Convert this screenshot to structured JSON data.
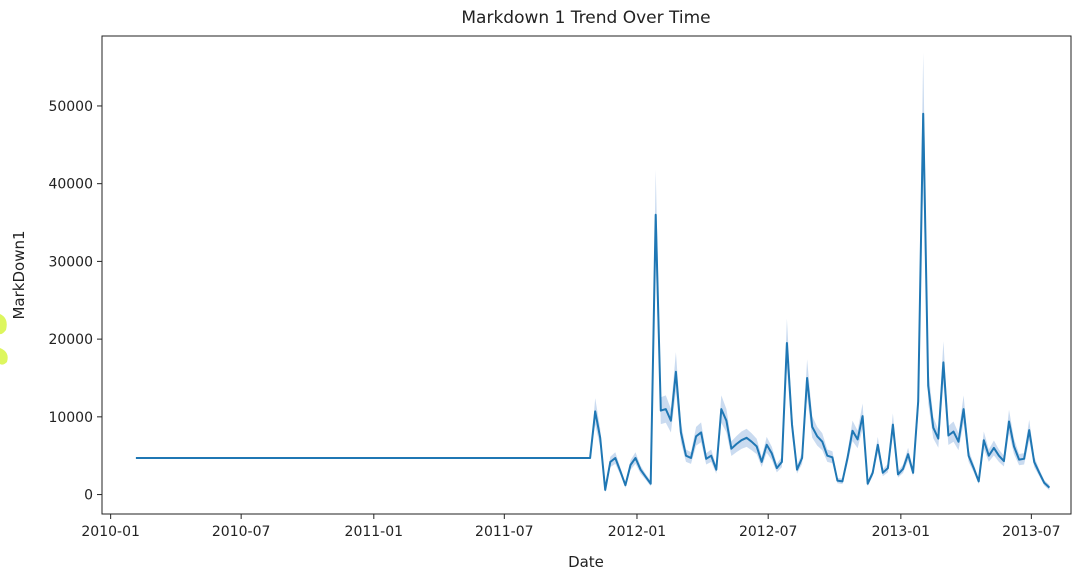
{
  "colors": {
    "line": "#1f77b4",
    "band": "#aec7e8",
    "axis": "#222222",
    "annotation": "#d7f542"
  },
  "chart_data": {
    "type": "line",
    "title": "Markdown 1 Trend Over Time",
    "xlabel": "Date",
    "ylabel": "MarkDown1",
    "x_ticks": [
      "2010-01",
      "2010-07",
      "2011-01",
      "2011-07",
      "2012-01",
      "2012-07",
      "2013-01",
      "2013-07"
    ],
    "y_ticks": [
      0,
      10000,
      20000,
      30000,
      40000,
      50000
    ],
    "xlim": [
      "2009-12-20",
      "2013-08-25"
    ],
    "ylim": [
      -2500,
      59000
    ],
    "grid": false,
    "confidence_band": true,
    "series": [
      {
        "points": [
          [
            "2010-02-05",
            4700
          ],
          [
            "2010-06-04",
            4700
          ],
          [
            "2010-10-01",
            4700
          ],
          [
            "2011-02-04",
            4700
          ],
          [
            "2011-06-03",
            4700
          ],
          [
            "2011-10-28",
            4700
          ],
          [
            "2011-11-04",
            10700
          ],
          [
            "2011-11-11",
            7300
          ],
          [
            "2011-11-18",
            600
          ],
          [
            "2011-11-25",
            4200
          ],
          [
            "2011-12-02",
            4700
          ],
          [
            "2011-12-09",
            3000
          ],
          [
            "2011-12-16",
            1200
          ],
          [
            "2011-12-23",
            3800
          ],
          [
            "2011-12-30",
            4700
          ],
          [
            "2012-01-06",
            3200
          ],
          [
            "2012-01-13",
            2300
          ],
          [
            "2012-01-20",
            1400
          ],
          [
            "2012-01-27",
            36000
          ],
          [
            "2012-02-03",
            10800
          ],
          [
            "2012-02-10",
            11000
          ],
          [
            "2012-02-17",
            9500
          ],
          [
            "2012-02-24",
            15800
          ],
          [
            "2012-03-02",
            8000
          ],
          [
            "2012-03-09",
            5000
          ],
          [
            "2012-03-16",
            4700
          ],
          [
            "2012-03-23",
            7500
          ],
          [
            "2012-03-30",
            8000
          ],
          [
            "2012-04-06",
            4600
          ],
          [
            "2012-04-13",
            5000
          ],
          [
            "2012-04-20",
            3200
          ],
          [
            "2012-04-27",
            11000
          ],
          [
            "2012-05-04",
            9500
          ],
          [
            "2012-05-11",
            5900
          ],
          [
            "2012-05-18",
            6500
          ],
          [
            "2012-05-25",
            7000
          ],
          [
            "2012-06-01",
            7300
          ],
          [
            "2012-06-08",
            6800
          ],
          [
            "2012-06-15",
            6200
          ],
          [
            "2012-06-22",
            4200
          ],
          [
            "2012-06-29",
            6400
          ],
          [
            "2012-07-06",
            5300
          ],
          [
            "2012-07-13",
            3400
          ],
          [
            "2012-07-20",
            4200
          ],
          [
            "2012-07-27",
            19500
          ],
          [
            "2012-08-03",
            9000
          ],
          [
            "2012-08-10",
            3200
          ],
          [
            "2012-08-17",
            4700
          ],
          [
            "2012-08-24",
            15000
          ],
          [
            "2012-08-31",
            8700
          ],
          [
            "2012-09-07",
            7500
          ],
          [
            "2012-09-14",
            6800
          ],
          [
            "2012-09-21",
            5000
          ],
          [
            "2012-09-28",
            4800
          ],
          [
            "2012-10-05",
            1800
          ],
          [
            "2012-10-12",
            1700
          ],
          [
            "2012-10-19",
            4700
          ],
          [
            "2012-10-26",
            8200
          ],
          [
            "2012-11-02",
            7100
          ],
          [
            "2012-11-09",
            10100
          ],
          [
            "2012-11-16",
            1400
          ],
          [
            "2012-11-23",
            2800
          ],
          [
            "2012-11-30",
            6400
          ],
          [
            "2012-12-07",
            2800
          ],
          [
            "2012-12-14",
            3400
          ],
          [
            "2012-12-21",
            9000
          ],
          [
            "2012-12-28",
            2600
          ],
          [
            "2013-01-04",
            3300
          ],
          [
            "2013-01-11",
            5200
          ],
          [
            "2013-01-18",
            2800
          ],
          [
            "2013-01-25",
            12000
          ],
          [
            "2013-02-01",
            49000
          ],
          [
            "2013-02-08",
            14000
          ],
          [
            "2013-02-15",
            8600
          ],
          [
            "2013-02-22",
            7200
          ],
          [
            "2013-03-01",
            17000
          ],
          [
            "2013-03-08",
            7600
          ],
          [
            "2013-03-15",
            8100
          ],
          [
            "2013-03-22",
            6800
          ],
          [
            "2013-03-29",
            11000
          ],
          [
            "2013-04-05",
            5000
          ],
          [
            "2013-04-12",
            3400
          ],
          [
            "2013-04-19",
            1700
          ],
          [
            "2013-04-26",
            7000
          ],
          [
            "2013-05-03",
            5000
          ],
          [
            "2013-05-10",
            6000
          ],
          [
            "2013-05-17",
            5000
          ],
          [
            "2013-05-24",
            4300
          ],
          [
            "2013-05-31",
            9400
          ],
          [
            "2013-06-07",
            6200
          ],
          [
            "2013-06-14",
            4500
          ],
          [
            "2013-06-21",
            4600
          ],
          [
            "2013-06-28",
            8300
          ],
          [
            "2013-07-05",
            4200
          ],
          [
            "2013-07-12",
            2800
          ],
          [
            "2013-07-19",
            1500
          ],
          [
            "2013-07-26",
            900
          ]
        ]
      }
    ]
  }
}
